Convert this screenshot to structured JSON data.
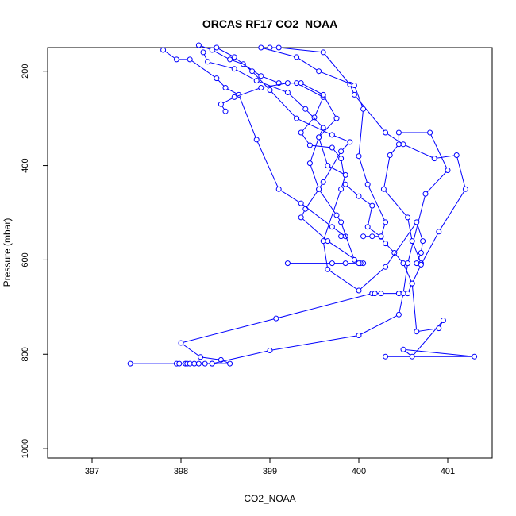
{
  "chart_data": {
    "type": "line",
    "title": "ORCAS RF17 CO2_NOAA",
    "xlabel": "CO2_NOAA",
    "ylabel": "Pressure (mbar)",
    "xlim": [
      396.5,
      401.5
    ],
    "ylim": [
      1020,
      150
    ],
    "y_reversed": true,
    "xticks": [
      397,
      398,
      399,
      400,
      401
    ],
    "yticks": [
      200,
      400,
      600,
      800,
      1000
    ],
    "series_color": "#0000ff",
    "grid": false,
    "legend": "none",
    "series": [
      {
        "points": [
          [
            397.43,
            820
          ],
          [
            397.95,
            820
          ],
          [
            397.98,
            820
          ],
          [
            398.05,
            820
          ],
          [
            398.07,
            820
          ],
          [
            398.1,
            820
          ],
          [
            398.15,
            820
          ],
          [
            398.2,
            820
          ],
          [
            398.35,
            820
          ],
          [
            398.55,
            820
          ],
          [
            398.45,
            812
          ],
          [
            398.22,
            806
          ],
          [
            398.0,
            776
          ],
          [
            399.07,
            724
          ],
          [
            400.15,
            671
          ],
          [
            400.18,
            671
          ],
          [
            400.25,
            671
          ],
          [
            400.45,
            671
          ],
          [
            400.55,
            671
          ],
          [
            400.6,
            650
          ],
          [
            400.5,
            607
          ],
          [
            400.4,
            585
          ],
          [
            400.3,
            565
          ],
          [
            400.25,
            551
          ],
          [
            400.1,
            530
          ],
          [
            400.15,
            485
          ],
          [
            400.0,
            465
          ],
          [
            399.85,
            440
          ],
          [
            399.8,
            385
          ],
          [
            399.7,
            362
          ],
          [
            399.45,
            357
          ],
          [
            399.35,
            330
          ],
          [
            399.5,
            298
          ],
          [
            399.6,
            255
          ],
          [
            399.3,
            225
          ],
          [
            399.1,
            225
          ],
          [
            398.9,
            210
          ],
          [
            398.7,
            185
          ],
          [
            398.55,
            175
          ],
          [
            398.35,
            155
          ],
          [
            398.2,
            145
          ]
        ]
      },
      {
        "points": [
          [
            398.27,
            820
          ],
          [
            398.35,
            820
          ],
          [
            399.0,
            792
          ],
          [
            400.0,
            760
          ],
          [
            400.45,
            716
          ],
          [
            400.5,
            671
          ],
          [
            400.55,
            607
          ],
          [
            400.75,
            460
          ],
          [
            401.0,
            410
          ],
          [
            400.8,
            330
          ],
          [
            400.45,
            330
          ],
          [
            400.45,
            355
          ],
          [
            400.35,
            378
          ],
          [
            400.28,
            450
          ],
          [
            400.55,
            510
          ],
          [
            400.6,
            560
          ],
          [
            400.7,
            607
          ],
          [
            400.65,
            607
          ],
          [
            400.7,
            585
          ],
          [
            400.72,
            560
          ],
          [
            400.65,
            520
          ],
          [
            400.3,
            615
          ],
          [
            400.0,
            665
          ],
          [
            399.65,
            620
          ],
          [
            399.6,
            560
          ],
          [
            399.8,
            450
          ],
          [
            399.85,
            420
          ],
          [
            399.65,
            400
          ],
          [
            399.55,
            340
          ],
          [
            399.6,
            320
          ],
          [
            399.4,
            280
          ],
          [
            399.2,
            245
          ],
          [
            398.85,
            220
          ],
          [
            398.6,
            195
          ],
          [
            398.3,
            180
          ],
          [
            398.25,
            160
          ]
        ]
      },
      {
        "points": [
          [
            400.3,
            805
          ],
          [
            401.3,
            805
          ],
          [
            400.5,
            790
          ],
          [
            400.6,
            805
          ],
          [
            400.95,
            728
          ],
          [
            400.9,
            745
          ],
          [
            400.65,
            752
          ],
          [
            400.6,
            650
          ],
          [
            400.7,
            610
          ],
          [
            400.9,
            540
          ],
          [
            401.2,
            450
          ],
          [
            401.1,
            378
          ],
          [
            400.85,
            385
          ],
          [
            400.5,
            355
          ],
          [
            400.3,
            330
          ],
          [
            399.95,
            250
          ],
          [
            399.9,
            228
          ],
          [
            399.6,
            160
          ],
          [
            399.1,
            150
          ],
          [
            399.0,
            150
          ]
        ]
      },
      {
        "points": [
          [
            399.2,
            607
          ],
          [
            399.7,
            607
          ],
          [
            399.85,
            607
          ],
          [
            400.05,
            607
          ],
          [
            400.02,
            607
          ],
          [
            399.65,
            560
          ],
          [
            399.35,
            510
          ],
          [
            399.4,
            492
          ],
          [
            399.55,
            450
          ],
          [
            399.6,
            435
          ],
          [
            399.8,
            370
          ],
          [
            399.9,
            350
          ],
          [
            399.7,
            335
          ],
          [
            399.3,
            300
          ],
          [
            399.0,
            240
          ],
          [
            398.8,
            200
          ],
          [
            398.6,
            170
          ],
          [
            398.4,
            150
          ]
        ]
      },
      {
        "points": [
          [
            399.8,
            550
          ],
          [
            399.85,
            550
          ],
          [
            399.7,
            530
          ],
          [
            399.35,
            480
          ],
          [
            399.1,
            450
          ],
          [
            398.85,
            345
          ],
          [
            398.65,
            250
          ],
          [
            398.5,
            235
          ],
          [
            398.4,
            215
          ],
          [
            398.1,
            175
          ],
          [
            397.95,
            175
          ],
          [
            397.8,
            155
          ]
        ]
      },
      {
        "points": [
          [
            400.05,
            550
          ],
          [
            400.15,
            550
          ],
          [
            400.25,
            550
          ],
          [
            400.3,
            520
          ],
          [
            400.1,
            440
          ],
          [
            400.0,
            380
          ],
          [
            400.05,
            280
          ],
          [
            399.95,
            230
          ],
          [
            399.55,
            200
          ],
          [
            399.3,
            170
          ],
          [
            398.9,
            150
          ]
        ]
      },
      {
        "points": [
          [
            398.5,
            285
          ],
          [
            398.45,
            270
          ],
          [
            398.6,
            255
          ],
          [
            398.9,
            235
          ],
          [
            399.2,
            225
          ],
          [
            399.35,
            225
          ],
          [
            399.6,
            250
          ],
          [
            399.75,
            300
          ],
          [
            399.55,
            340
          ],
          [
            399.45,
            395
          ],
          [
            399.55,
            450
          ],
          [
            399.75,
            505
          ],
          [
            399.8,
            520
          ],
          [
            399.95,
            600
          ],
          [
            400.0,
            607
          ]
        ]
      }
    ]
  }
}
